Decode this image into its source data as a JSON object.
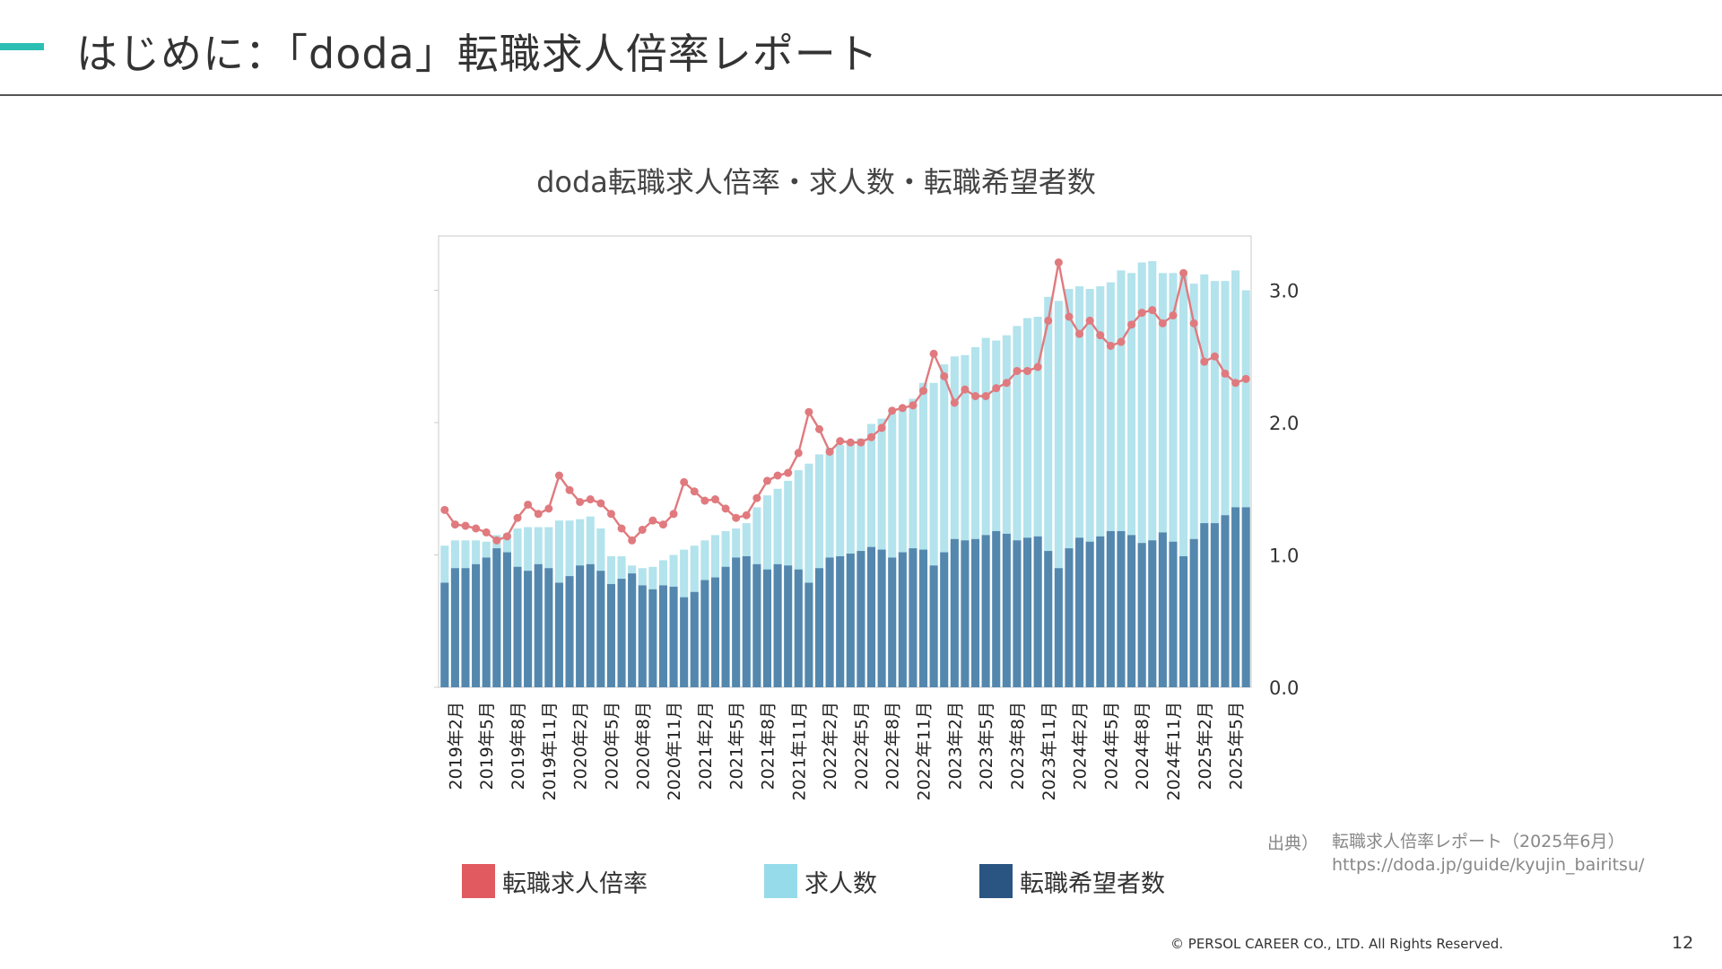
{
  "slide": {
    "title": "はじめに：「doda」転職求人倍率レポート",
    "source_label": "出典）",
    "source_title": "転職求人倍率レポート（2025年6月）",
    "source_url": "https://doda.jp/guide/kyujin_bairitsu/",
    "copyright": "© PERSOL CAREER CO., LTD. All Rights Reserved.",
    "page_number": "12",
    "accent_color": "#2bbfb3"
  },
  "chart_data": {
    "type": "bar",
    "title": "doda転職求人倍率・求人数・転職希望者数",
    "ylabel": "",
    "ylim": [
      0,
      3.4
    ],
    "right_axis_ticks": [
      "0.0",
      "1.0",
      "2.0",
      "3.0"
    ],
    "right_axis_values": [
      0,
      1,
      2,
      3
    ],
    "x_tick_labels": [
      "2019年2月",
      "2019年5月",
      "2019年8月",
      "2019年11月",
      "2020年2月",
      "2020年5月",
      "2020年8月",
      "2020年11月",
      "2021年2月",
      "2021年5月",
      "2021年8月",
      "2021年11月",
      "2022年2月",
      "2022年5月",
      "2022年8月",
      "2022年11月",
      "2023年2月",
      "2023年5月",
      "2023年8月",
      "2023年11月",
      "2024年2月",
      "2024年5月",
      "2024年8月",
      "2024年11月",
      "2025年2月",
      "2025年5月"
    ],
    "categories": [
      "2019-01",
      "2019-02",
      "2019-03",
      "2019-04",
      "2019-05",
      "2019-06",
      "2019-07",
      "2019-08",
      "2019-09",
      "2019-10",
      "2019-11",
      "2019-12",
      "2020-01",
      "2020-02",
      "2020-03",
      "2020-04",
      "2020-05",
      "2020-06",
      "2020-07",
      "2020-08",
      "2020-09",
      "2020-10",
      "2020-11",
      "2020-12",
      "2021-01",
      "2021-02",
      "2021-03",
      "2021-04",
      "2021-05",
      "2021-06",
      "2021-07",
      "2021-08",
      "2021-09",
      "2021-10",
      "2021-11",
      "2021-12",
      "2022-01",
      "2022-02",
      "2022-03",
      "2022-04",
      "2022-05",
      "2022-06",
      "2022-07",
      "2022-08",
      "2022-09",
      "2022-10",
      "2022-11",
      "2022-12",
      "2023-01",
      "2023-02",
      "2023-03",
      "2023-04",
      "2023-05",
      "2023-06",
      "2023-07",
      "2023-08",
      "2023-09",
      "2023-10",
      "2023-11",
      "2023-12",
      "2024-01",
      "2024-02",
      "2024-03",
      "2024-04",
      "2024-05",
      "2024-06",
      "2024-07",
      "2024-08",
      "2024-09",
      "2024-10",
      "2024-11",
      "2024-12",
      "2025-01",
      "2025-02",
      "2025-03",
      "2025-04",
      "2025-05",
      "2025-06"
    ],
    "series": [
      {
        "name": "求人数",
        "type": "bar",
        "color": "#b3e3ec",
        "values": [
          1.07,
          1.11,
          1.11,
          1.11,
          1.1,
          1.15,
          1.16,
          1.2,
          1.21,
          1.21,
          1.21,
          1.26,
          1.26,
          1.27,
          1.29,
          1.2,
          0.99,
          0.99,
          0.92,
          0.9,
          0.91,
          0.96,
          1.0,
          1.04,
          1.07,
          1.11,
          1.15,
          1.18,
          1.2,
          1.24,
          1.36,
          1.45,
          1.5,
          1.56,
          1.64,
          1.69,
          1.76,
          1.81,
          1.83,
          1.85,
          1.88,
          1.99,
          2.03,
          2.07,
          2.12,
          2.18,
          2.3,
          2.3,
          2.44,
          2.5,
          2.51,
          2.57,
          2.64,
          2.62,
          2.66,
          2.73,
          2.79,
          2.8,
          2.95,
          2.92,
          3.01,
          3.03,
          3.01,
          3.03,
          3.06,
          3.15,
          3.13,
          3.21,
          3.22,
          3.13,
          3.13,
          3.11,
          3.05,
          3.12,
          3.07,
          3.07,
          3.15,
          3.0
        ]
      },
      {
        "name": "転職希望者数",
        "type": "bar",
        "color": "#5487ad",
        "values": [
          0.79,
          0.9,
          0.9,
          0.93,
          0.98,
          1.05,
          1.02,
          0.91,
          0.88,
          0.93,
          0.9,
          0.79,
          0.84,
          0.92,
          0.93,
          0.88,
          0.78,
          0.82,
          0.86,
          0.77,
          0.74,
          0.77,
          0.76,
          0.68,
          0.72,
          0.81,
          0.83,
          0.91,
          0.98,
          0.99,
          0.93,
          0.89,
          0.93,
          0.92,
          0.89,
          0.79,
          0.9,
          0.98,
          0.99,
          1.01,
          1.03,
          1.06,
          1.04,
          0.98,
          1.02,
          1.05,
          1.04,
          0.92,
          1.02,
          1.12,
          1.11,
          1.12,
          1.15,
          1.18,
          1.16,
          1.11,
          1.13,
          1.14,
          1.03,
          0.9,
          1.05,
          1.13,
          1.1,
          1.14,
          1.18,
          1.18,
          1.15,
          1.09,
          1.11,
          1.17,
          1.1,
          0.99,
          1.12,
          1.24,
          1.24,
          1.3,
          1.36,
          1.36
        ]
      },
      {
        "name": "転職求人倍率",
        "type": "line",
        "color": "#e07a7e",
        "values": [
          1.34,
          1.23,
          1.22,
          1.2,
          1.17,
          1.11,
          1.14,
          1.28,
          1.38,
          1.31,
          1.35,
          1.6,
          1.49,
          1.4,
          1.42,
          1.39,
          1.31,
          1.2,
          1.11,
          1.19,
          1.26,
          1.23,
          1.31,
          1.55,
          1.48,
          1.41,
          1.42,
          1.35,
          1.28,
          1.3,
          1.43,
          1.56,
          1.6,
          1.62,
          1.77,
          2.08,
          1.95,
          1.78,
          1.86,
          1.85,
          1.85,
          1.89,
          1.96,
          2.09,
          2.11,
          2.13,
          2.24,
          2.52,
          2.35,
          2.15,
          2.25,
          2.2,
          2.2,
          2.26,
          2.3,
          2.39,
          2.39,
          2.42,
          2.77,
          3.21,
          2.8,
          2.67,
          2.77,
          2.66,
          2.58,
          2.61,
          2.74,
          2.83,
          2.85,
          2.75,
          2.81,
          3.13,
          2.75,
          2.46,
          2.5,
          2.37,
          2.3,
          2.33
        ]
      }
    ],
    "grid": false,
    "legend": "bottom",
    "legend_entries": [
      {
        "label": "転職求人倍率",
        "color": "#e05a60"
      },
      {
        "label": "求人数",
        "color": "#96dbe9"
      },
      {
        "label": "転職希望者数",
        "color": "#2a5482"
      }
    ]
  }
}
